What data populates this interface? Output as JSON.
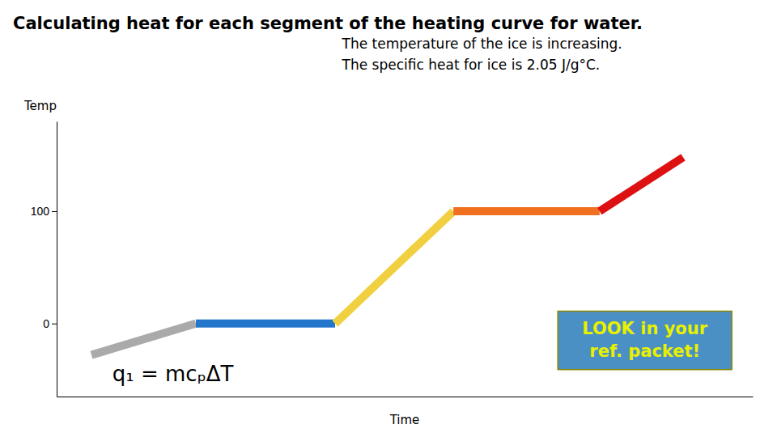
{
  "chart_data": {
    "type": "line",
    "title": "Calculating heat for each segment of the heating curve for water.",
    "x_label": "Time",
    "y_label": "Temp",
    "series": [
      {
        "color": "#aaaaaa",
        "x": [
          1.0,
          2.5
        ],
        "values": [
          -28,
          0
        ]
      },
      {
        "color": "#2277cc",
        "x": [
          2.5,
          4.5
        ],
        "values": [
          0,
          0
        ]
      },
      {
        "color": "#f0d040",
        "x": [
          4.5,
          6.2
        ],
        "values": [
          0,
          100
        ]
      },
      {
        "color": "#f07020",
        "x": [
          6.2,
          8.3
        ],
        "values": [
          100,
          100
        ]
      },
      {
        "color": "#dd1111",
        "x": [
          8.3,
          9.5
        ],
        "values": [
          100,
          148
        ]
      }
    ],
    "xlim": [
      0.5,
      10.5
    ],
    "ylim": [
      -65,
      180
    ],
    "yticks": [
      0,
      100
    ],
    "tick_labels": "y",
    "annotations": [
      {
        "text": "The temperature of the ice is increasing.\nThe specific heat for ice is 2.05 J/g°C."
      },
      {
        "text": "q₁ = mcₚΔT"
      },
      {
        "text": "LOOK in your\nref. packet!",
        "color": "#e8f000",
        "box_color": "#4a90c4"
      }
    ]
  }
}
